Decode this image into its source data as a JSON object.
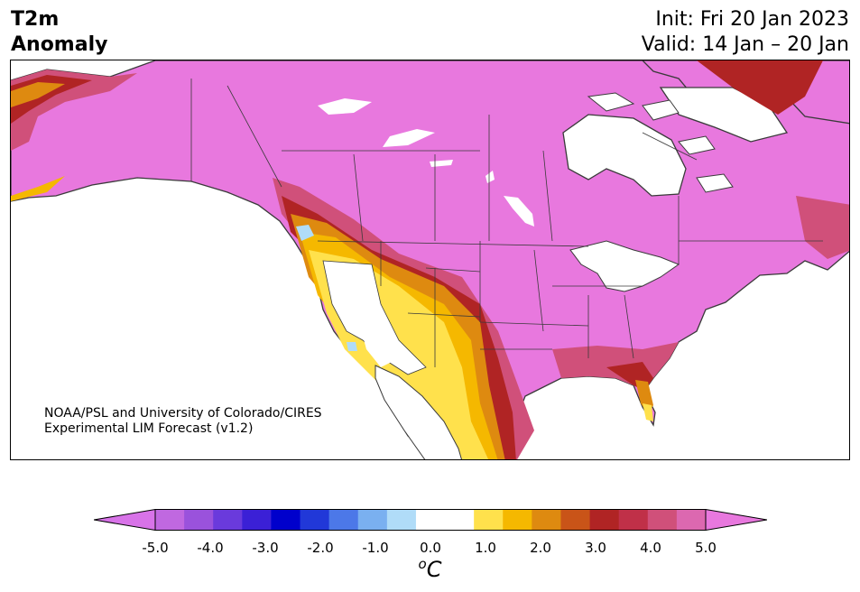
{
  "title": {
    "left_line1": "T2m",
    "left_line2": "Anomaly",
    "init": "Init: Fri 20 Jan 2023",
    "valid": "Valid: 14 Jan – 20 Jan"
  },
  "credit": {
    "line1": "NOAA/PSL and University of Colorado/CIRES",
    "line2": "Experimental LIM Forecast (v1.2)"
  },
  "colorbar": {
    "ticks": [
      "-5.0",
      "-4.0",
      "-3.0",
      "-2.0",
      "-1.0",
      "0.0",
      "1.0",
      "2.0",
      "3.0",
      "4.0",
      "5.0"
    ],
    "unit_base": "C",
    "unit_sup": "o",
    "under_color": "#d873e8",
    "over_color": "#e878de",
    "colors": [
      "#c068e0",
      "#9a52dc",
      "#6a3adc",
      "#3b20d6",
      "#0000cc",
      "#2138d8",
      "#4c78e8",
      "#7ab0f0",
      "#b0dcf8",
      "#ffffff",
      "#ffffff",
      "#ffe14c",
      "#f5b800",
      "#de8a10",
      "#c95418",
      "#b02424",
      "#c03048",
      "#d0507a",
      "#dc68b0"
    ]
  },
  "palette": {
    "anomaly_max": "#e878de",
    "anomaly_4": "#d0507a",
    "anomaly_3": "#b02424",
    "anomaly_2": "#de8a10",
    "anomaly_1": "#f5b800",
    "anomaly_05": "#ffe14c",
    "anomaly_neg1": "#b0dcf8",
    "land_neutral": "#ffffff",
    "coast": "#3a3a3a"
  }
}
